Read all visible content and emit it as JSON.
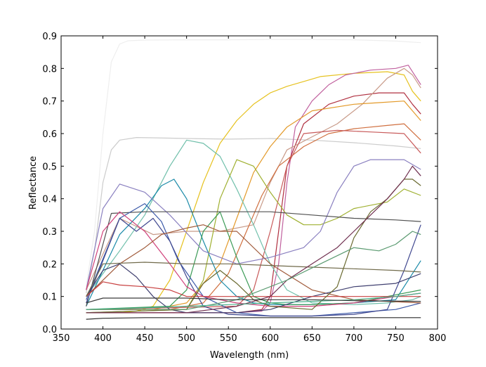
{
  "chart_data": {
    "type": "line",
    "title": "",
    "xlabel": "Wavelength (nm)",
    "ylabel": "Reflectance",
    "xlim": [
      350,
      800
    ],
    "ylim": [
      0.0,
      0.9
    ],
    "xticks": [
      350,
      400,
      450,
      500,
      550,
      600,
      650,
      700,
      750,
      800
    ],
    "yticks": [
      0.0,
      0.1,
      0.2,
      0.3,
      0.4,
      0.5,
      0.6,
      0.7,
      0.8,
      0.9
    ],
    "xtick_labels": [
      "350",
      "400",
      "450",
      "500",
      "550",
      "600",
      "650",
      "700",
      "750",
      "800"
    ],
    "ytick_labels": [
      "0.0",
      "0.1",
      "0.2",
      "0.3",
      "0.4",
      "0.5",
      "0.6",
      "0.7",
      "0.8",
      "0.9"
    ],
    "grid": false,
    "legend": "none",
    "series": [
      {
        "color": "#eeeeee",
        "x": [
          380,
          390,
          400,
          410,
          420,
          430,
          450,
          500,
          550,
          600,
          650,
          700,
          750,
          780
        ],
        "y": [
          0.13,
          0.3,
          0.6,
          0.82,
          0.875,
          0.885,
          0.887,
          0.888,
          0.888,
          0.889,
          0.889,
          0.888,
          0.884,
          0.879
        ]
      },
      {
        "color": "#cccccc",
        "x": [
          380,
          390,
          400,
          410,
          420,
          440,
          460,
          500,
          550,
          600,
          650,
          700,
          750,
          780
        ],
        "y": [
          0.11,
          0.24,
          0.45,
          0.55,
          0.58,
          0.588,
          0.587,
          0.585,
          0.583,
          0.585,
          0.58,
          0.572,
          0.562,
          0.554
        ]
      },
      {
        "color": "#e6c21f",
        "x": [
          380,
          400,
          420,
          440,
          460,
          480,
          500,
          520,
          540,
          560,
          580,
          600,
          620,
          640,
          660,
          700,
          740,
          760,
          770,
          780
        ],
        "y": [
          0.05,
          0.05,
          0.05,
          0.055,
          0.07,
          0.15,
          0.3,
          0.45,
          0.57,
          0.64,
          0.69,
          0.725,
          0.745,
          0.76,
          0.775,
          0.785,
          0.79,
          0.78,
          0.73,
          0.7
        ]
      },
      {
        "color": "#c0609e",
        "x": [
          380,
          500,
          560,
          590,
          600,
          610,
          620,
          630,
          650,
          670,
          690,
          720,
          750,
          765,
          775,
          780
        ],
        "y": [
          0.05,
          0.05,
          0.05,
          0.055,
          0.08,
          0.2,
          0.45,
          0.62,
          0.7,
          0.75,
          0.78,
          0.795,
          0.8,
          0.81,
          0.77,
          0.75
        ]
      },
      {
        "color": "#b03040",
        "x": [
          380,
          500,
          560,
          590,
          600,
          610,
          620,
          640,
          670,
          700,
          730,
          760,
          770,
          780
        ],
        "y": [
          0.05,
          0.05,
          0.05,
          0.06,
          0.1,
          0.3,
          0.5,
          0.63,
          0.69,
          0.715,
          0.725,
          0.725,
          0.69,
          0.66
        ]
      },
      {
        "color": "#c89a88",
        "x": [
          380,
          420,
          460,
          500,
          540,
          580,
          600,
          620,
          650,
          680,
          710,
          740,
          760,
          770,
          780
        ],
        "y": [
          0.12,
          0.34,
          0.29,
          0.3,
          0.3,
          0.32,
          0.45,
          0.55,
          0.59,
          0.63,
          0.69,
          0.77,
          0.8,
          0.78,
          0.74
        ]
      },
      {
        "color": "#e39a2a",
        "x": [
          380,
          460,
          500,
          540,
          560,
          580,
          600,
          620,
          650,
          700,
          730,
          760,
          770,
          780
        ],
        "y": [
          0.06,
          0.06,
          0.08,
          0.2,
          0.34,
          0.48,
          0.56,
          0.62,
          0.67,
          0.69,
          0.695,
          0.7,
          0.67,
          0.64
        ]
      },
      {
        "color": "#d07040",
        "x": [
          380,
          480,
          520,
          550,
          570,
          590,
          610,
          640,
          670,
          700,
          740,
          760,
          780
        ],
        "y": [
          0.06,
          0.06,
          0.08,
          0.17,
          0.29,
          0.41,
          0.5,
          0.56,
          0.6,
          0.615,
          0.625,
          0.63,
          0.58
        ]
      },
      {
        "color": "#c85a5a",
        "x": [
          380,
          560,
          580,
          600,
          620,
          640,
          680,
          720,
          760,
          780
        ],
        "y": [
          0.06,
          0.07,
          0.12,
          0.3,
          0.5,
          0.6,
          0.61,
          0.605,
          0.6,
          0.54
        ]
      },
      {
        "color": "#6fbfaa",
        "x": [
          380,
          420,
          450,
          480,
          500,
          520,
          540,
          560,
          580,
          600,
          620,
          650,
          700,
          740,
          770,
          780
        ],
        "y": [
          0.1,
          0.24,
          0.35,
          0.5,
          0.58,
          0.57,
          0.53,
          0.43,
          0.32,
          0.2,
          0.12,
          0.08,
          0.075,
          0.08,
          0.09,
          0.1
        ]
      },
      {
        "color": "#9fb030",
        "x": [
          380,
          500,
          520,
          540,
          560,
          580,
          600,
          620,
          640,
          660,
          680,
          700,
          740,
          760,
          780
        ],
        "y": [
          0.05,
          0.06,
          0.15,
          0.4,
          0.52,
          0.5,
          0.42,
          0.35,
          0.32,
          0.32,
          0.34,
          0.37,
          0.39,
          0.43,
          0.41
        ]
      },
      {
        "color": "#1a8aa8",
        "x": [
          380,
          420,
          450,
          470,
          485,
          500,
          520,
          540,
          560,
          580,
          600,
          650,
          700,
          750,
          780
        ],
        "y": [
          0.07,
          0.29,
          0.37,
          0.44,
          0.46,
          0.4,
          0.27,
          0.15,
          0.1,
          0.08,
          0.075,
          0.075,
          0.08,
          0.09,
          0.21
        ]
      },
      {
        "color": "#3a9a55",
        "x": [
          380,
          480,
          500,
          520,
          540,
          560,
          580,
          600,
          620,
          650,
          700,
          740,
          780
        ],
        "y": [
          0.06,
          0.07,
          0.12,
          0.3,
          0.36,
          0.22,
          0.1,
          0.08,
          0.075,
          0.075,
          0.08,
          0.1,
          0.12
        ]
      },
      {
        "color": "#8a80c0",
        "x": [
          380,
          400,
          420,
          450,
          480,
          520,
          560,
          600,
          640,
          660,
          680,
          700,
          720,
          760,
          780
        ],
        "y": [
          0.12,
          0.37,
          0.445,
          0.42,
          0.35,
          0.24,
          0.2,
          0.22,
          0.25,
          0.3,
          0.42,
          0.5,
          0.52,
          0.52,
          0.49
        ]
      },
      {
        "color": "#505050",
        "x": [
          380,
          410,
          450,
          500,
          550,
          600,
          650,
          700,
          750,
          780
        ],
        "y": [
          0.07,
          0.355,
          0.36,
          0.36,
          0.36,
          0.36,
          0.35,
          0.34,
          0.335,
          0.33
        ]
      },
      {
        "color": "#3a58a8",
        "x": [
          380,
          420,
          450,
          470,
          490,
          520,
          560,
          600,
          650,
          700,
          750,
          780
        ],
        "y": [
          0.09,
          0.34,
          0.385,
          0.33,
          0.21,
          0.1,
          0.05,
          0.04,
          0.04,
          0.05,
          0.06,
          0.08
        ]
      },
      {
        "color": "#404890",
        "x": [
          380,
          420,
          440,
          460,
          480,
          500,
          520,
          550,
          600,
          650,
          700,
          740,
          760,
          780
        ],
        "y": [
          0.08,
          0.34,
          0.3,
          0.34,
          0.27,
          0.16,
          0.07,
          0.045,
          0.04,
          0.04,
          0.045,
          0.06,
          0.18,
          0.32
        ]
      },
      {
        "color": "#d0407a",
        "x": [
          380,
          400,
          420,
          450,
          480,
          500,
          520,
          560,
          600,
          650,
          700,
          750,
          780
        ],
        "y": [
          0.12,
          0.3,
          0.36,
          0.3,
          0.2,
          0.13,
          0.1,
          0.08,
          0.07,
          0.07,
          0.08,
          0.1,
          0.11
        ]
      },
      {
        "color": "#a05a3a",
        "x": [
          380,
          420,
          450,
          470,
          500,
          520,
          540,
          560,
          600,
          650,
          700,
          780
        ],
        "y": [
          0.1,
          0.2,
          0.25,
          0.29,
          0.31,
          0.32,
          0.3,
          0.3,
          0.2,
          0.12,
          0.09,
          0.08
        ]
      },
      {
        "color": "#404070",
        "x": [
          380,
          400,
          420,
          440,
          460,
          480,
          500,
          520,
          560,
          600,
          650,
          700,
          750,
          780
        ],
        "y": [
          0.1,
          0.18,
          0.2,
          0.16,
          0.1,
          0.06,
          0.05,
          0.05,
          0.05,
          0.06,
          0.1,
          0.13,
          0.14,
          0.17
        ]
      },
      {
        "color": "#c84040",
        "x": [
          380,
          400,
          420,
          450,
          480,
          500,
          520,
          540,
          560,
          600,
          700,
          780
        ],
        "y": [
          0.1,
          0.145,
          0.135,
          0.13,
          0.12,
          0.1,
          0.1,
          0.1,
          0.1,
          0.1,
          0.1,
          0.1
        ]
      },
      {
        "color": "#706a4a",
        "x": [
          380,
          400,
          450,
          500,
          550,
          600,
          650,
          700,
          750,
          780
        ],
        "y": [
          0.1,
          0.2,
          0.205,
          0.2,
          0.2,
          0.195,
          0.19,
          0.185,
          0.18,
          0.175
        ]
      },
      {
        "color": "#6a6a30",
        "x": [
          380,
          500,
          520,
          540,
          560,
          580,
          600,
          650,
          680,
          700,
          720,
          740,
          760,
          770,
          780
        ],
        "y": [
          0.05,
          0.06,
          0.14,
          0.18,
          0.14,
          0.09,
          0.07,
          0.06,
          0.13,
          0.28,
          0.36,
          0.4,
          0.46,
          0.46,
          0.44
        ]
      },
      {
        "color": "#703050",
        "x": [
          380,
          500,
          560,
          600,
          620,
          650,
          680,
          700,
          720,
          740,
          760,
          770,
          780
        ],
        "y": [
          0.05,
          0.05,
          0.07,
          0.1,
          0.15,
          0.2,
          0.25,
          0.3,
          0.35,
          0.4,
          0.46,
          0.5,
          0.47
        ]
      },
      {
        "color": "#5a9a70",
        "x": [
          380,
          500,
          560,
          620,
          660,
          700,
          730,
          750,
          770,
          780
        ],
        "y": [
          0.06,
          0.06,
          0.09,
          0.15,
          0.2,
          0.25,
          0.24,
          0.26,
          0.3,
          0.29
        ]
      },
      {
        "color": "#4ab08a",
        "x": [
          380,
          450,
          500,
          550,
          600,
          650,
          700,
          750,
          780
        ],
        "y": [
          0.06,
          0.065,
          0.07,
          0.075,
          0.08,
          0.085,
          0.09,
          0.1,
          0.11
        ]
      },
      {
        "color": "#2a2a2a",
        "x": [
          380,
          400,
          450,
          500,
          550,
          600,
          650,
          700,
          780
        ],
        "y": [
          0.03,
          0.033,
          0.035,
          0.035,
          0.035,
          0.035,
          0.035,
          0.035,
          0.035
        ]
      },
      {
        "color": "#3a3a3a",
        "x": [
          380,
          400,
          450,
          500,
          550,
          600,
          650,
          700,
          780
        ],
        "y": [
          0.08,
          0.095,
          0.095,
          0.095,
          0.09,
          0.09,
          0.09,
          0.087,
          0.085
        ]
      }
    ]
  }
}
